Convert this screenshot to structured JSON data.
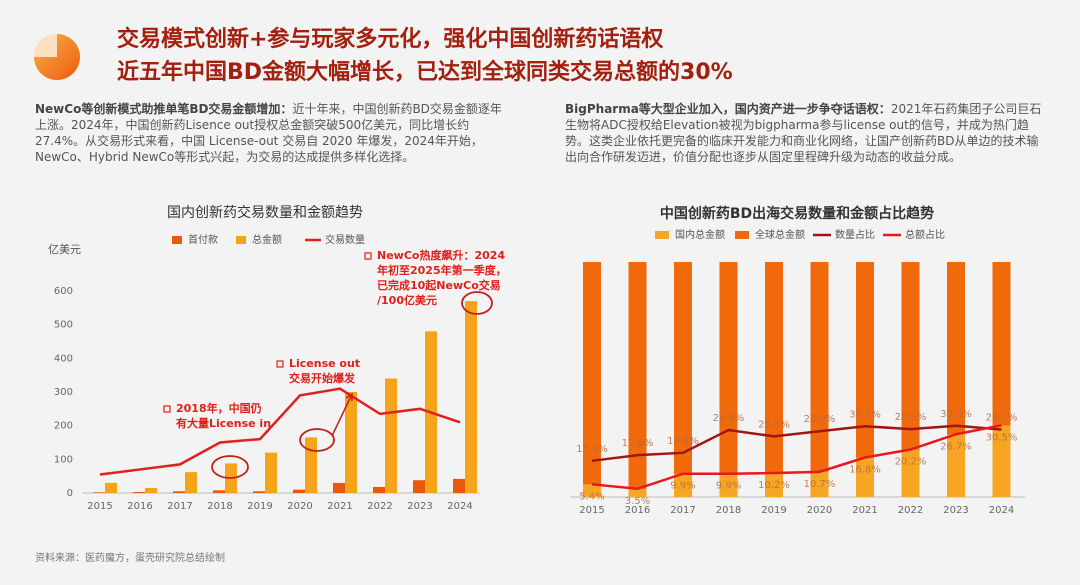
{
  "header": {
    "title_line1": "交易模式创新+参与玩家多元化，强化中国创新药话语权",
    "title_line2": "近五年中国BD金额大幅增长，已达到全球同类交易总额的30%"
  },
  "sections": [
    {
      "lead": "NewCo等创新模式助推单笔BD交易金额增加：",
      "body": "近十年来，中国创新药BD交易金额逐年上涨。2024年，中国创新药Lisence out授权总金额突破500亿美元，同比增长约27.4%。从交易形式来看，中国 License-out 交易自 2020 年爆发，2024年开始，NewCo、Hybrid NewCo等形式兴起，为交易的达成提供多样化选择。"
    },
    {
      "lead": "BigPharma等大型企业加入，国内资产进一步争夺话语权：",
      "body": "2021年石药集团子公司巨石生物将ADC授权给Elevation被视为bigpharma参与license out的信号，并成为热门趋势。这类企业依托更完备的临床开发能力和商业化网络，让国产创新药BD从单边的技术输出向合作研发迈进，价值分配也逐步从固定里程碑升级为动态的收益分成。"
    }
  ],
  "source": "资料来源：医药魔方，蛋壳研究院总结绘制",
  "chart_data": [
    {
      "type": "bar",
      "title": "国内创新药交易数量和金额趋势",
      "y_label": "亿美元",
      "categories": [
        "2015",
        "2016",
        "2017",
        "2018",
        "2019",
        "2020",
        "2021",
        "2022",
        "2023",
        "2024"
      ],
      "series": [
        {
          "name": "首付款",
          "color": "#e8590c",
          "values": [
            2,
            3,
            5,
            8,
            5,
            10,
            30,
            18,
            38,
            42
          ]
        },
        {
          "name": "总金额",
          "color": "#f5a31a",
          "values": [
            30,
            15,
            62,
            88,
            120,
            165,
            300,
            340,
            480,
            570
          ]
        },
        {
          "name": "交易数量",
          "type": "line",
          "color": "#e0201b",
          "values": [
            55,
            70,
            85,
            150,
            160,
            290,
            310,
            235,
            250,
            210
          ]
        }
      ],
      "ylim": [
        0,
        600
      ],
      "yticks": [
        0,
        100,
        200,
        300,
        400,
        500,
        600
      ],
      "annotations": [
        [
          "2018年，中国仍",
          "有大量License in"
        ],
        [
          "License out",
          "交易开始爆发"
        ],
        [
          "NewCo热度飙升：2024",
          "年初至2025年第一季度，",
          "已完成10起NewCo交易",
          "/100亿美元"
        ]
      ]
    },
    {
      "type": "bar",
      "title": "中国创新药BD出海交易数量和金额占比趋势",
      "categories": [
        "2015",
        "2016",
        "2017",
        "2018",
        "2019",
        "2020",
        "2021",
        "2022",
        "2023",
        "2024"
      ],
      "ylim": [
        0,
        100
      ],
      "series": [
        {
          "name": "国内总金额",
          "color": "#f6a623",
          "values": [
            5.4,
            3.5,
            9.9,
            9.9,
            10.2,
            10.7,
            16.8,
            20.2,
            26.7,
            30.5
          ]
        },
        {
          "name": "全球总金额",
          "color": "#f06a0c",
          "values": [
            100,
            100,
            100,
            100,
            100,
            100,
            100,
            100,
            100,
            100
          ]
        },
        {
          "name": "数量占比",
          "type": "line",
          "color": "#a31515",
          "values": [
            15.4,
            17.8,
            18.8,
            28.5,
            25.8,
            28.0,
            30.1,
            28.9,
            30.3,
            28.7
          ],
          "value_labels": [
            "15.4%",
            "17.8%",
            "18.8%",
            "28.5%",
            "25.8%",
            "28.0%",
            "30.1%",
            "28.9%",
            "30.3%",
            "28.7%"
          ]
        },
        {
          "name": "总额占比",
          "type": "line",
          "color": "#e8181e",
          "values": [
            5.4,
            3.5,
            9.9,
            9.9,
            10.2,
            10.7,
            16.8,
            20.2,
            26.7,
            30.5
          ],
          "value_labels": [
            "5.4%",
            "3.5%",
            "9.9%",
            "9.9%",
            "10.2%",
            "10.7%",
            "16.8%",
            "20.2%",
            "26.7%",
            "30.5%"
          ]
        }
      ]
    }
  ]
}
